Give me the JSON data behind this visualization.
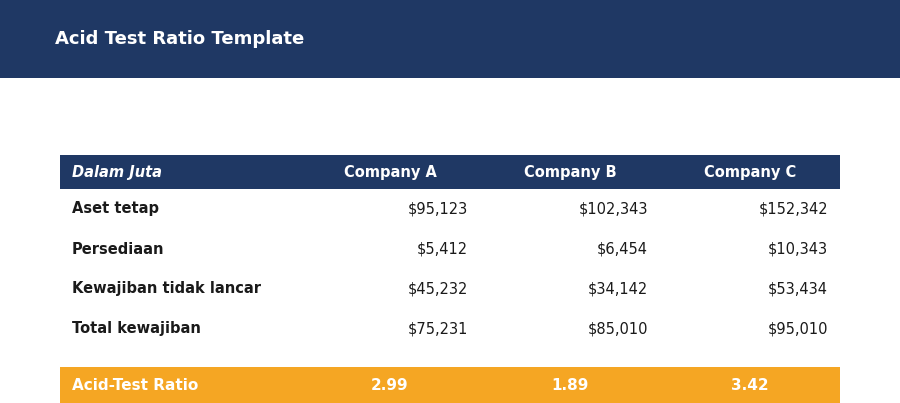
{
  "title": "Acid Test Ratio Template",
  "title_bg_color": "#1F3864",
  "title_text_color": "#FFFFFF",
  "header_bg_color": "#1F3864",
  "header_text_color": "#FFFFFF",
  "body_bg_color": "#F2F2F2",
  "body_text_color": "#1a1a1a",
  "ratio_bg_color": "#F5A623",
  "ratio_text_color": "#FFFFFF",
  "columns": [
    "Dalam Juta",
    "Company A",
    "Company B",
    "Company C"
  ],
  "rows": [
    [
      "Aset tetap",
      "$95,123",
      "$102,343",
      "$152,342"
    ],
    [
      "Persediaan",
      "$5,412",
      "$6,454",
      "$10,343"
    ],
    [
      "Kewajiban tidak lancar",
      "$45,232",
      "$34,142",
      "$53,434"
    ],
    [
      "Total kewajiban",
      "$75,231",
      "$85,010",
      "$95,010"
    ]
  ],
  "ratio_row": [
    "Acid-Test Ratio",
    "2.99",
    "1.89",
    "3.42"
  ],
  "fig_width": 9.0,
  "fig_height": 4.03,
  "dpi": 100
}
